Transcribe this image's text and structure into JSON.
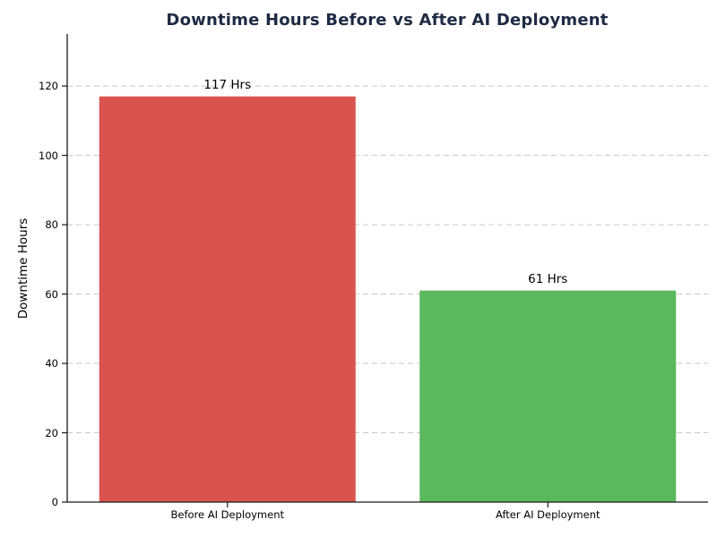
{
  "chart_data": {
    "type": "bar",
    "title": "Downtime Hours Before vs After AI Deployment",
    "categories": [
      "Before AI Deployment",
      "After AI Deployment"
    ],
    "values": [
      117,
      61
    ],
    "bar_labels": [
      "117 Hrs",
      "61 Hrs"
    ],
    "xlabel": "",
    "ylabel": "Downtime Hours",
    "yticks": [
      0,
      20,
      40,
      60,
      80,
      100,
      120
    ],
    "ylim": [
      0,
      135
    ],
    "grid": {
      "axis": "y",
      "style": "dashed",
      "on": true
    },
    "legend": "none",
    "colors": {
      "bars": [
        "#d9534f",
        "#5cb85c"
      ],
      "title": "#1f2a44",
      "grid": "#c9c9c9",
      "axis": "#1a1a1a",
      "text": "#000000",
      "background": "#ffffff"
    }
  }
}
